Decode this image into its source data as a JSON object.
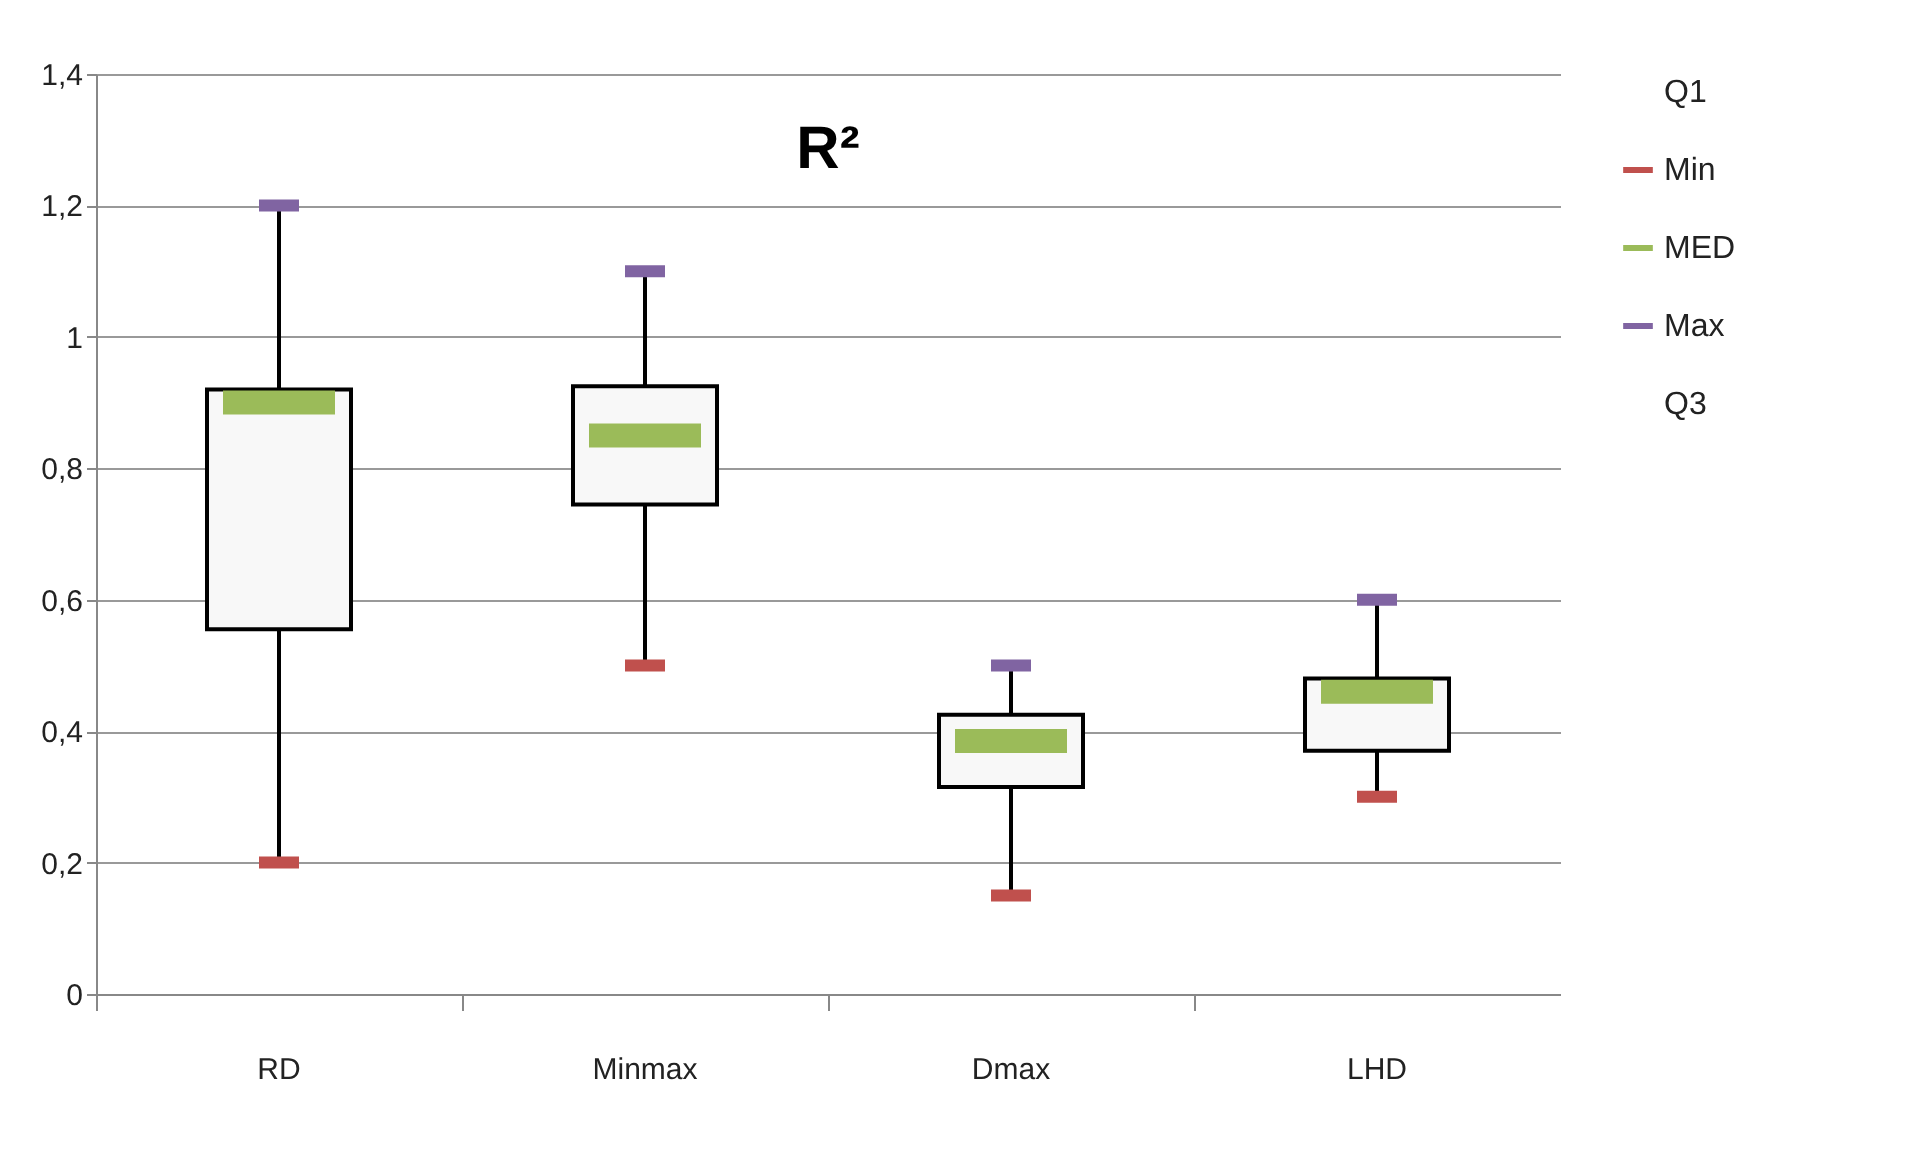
{
  "chart_data": {
    "type": "box",
    "title": "R²",
    "categories": [
      "RD",
      "Minmax",
      "Dmax",
      "LHD"
    ],
    "boxes": [
      {
        "low": 0.2,
        "q1": 0.555,
        "median": 0.9,
        "q3": 0.92,
        "high": 1.2
      },
      {
        "low": 0.5,
        "q1": 0.745,
        "median": 0.85,
        "q3": 0.925,
        "high": 1.1
      },
      {
        "low": 0.15,
        "q1": 0.315,
        "median": 0.385,
        "q3": 0.425,
        "high": 0.5
      },
      {
        "low": 0.3,
        "q1": 0.37,
        "median": 0.46,
        "q3": 0.48,
        "high": 0.6
      }
    ],
    "series": [
      {
        "name": "Q1",
        "type": "scatter",
        "values": [
          null,
          null,
          null,
          null
        ]
      },
      {
        "name": "Min",
        "type": "scatter",
        "color": "#c0504d",
        "values": [
          0.2,
          0.5,
          0.15,
          0.3
        ]
      },
      {
        "name": "MED",
        "type": "scatter",
        "color": "#9bbb59",
        "values": [
          null,
          null,
          null,
          null
        ]
      },
      {
        "name": "Max",
        "type": "scatter",
        "color": "#8064a2",
        "values": [
          1.2,
          1.1,
          0.5,
          0.6
        ]
      },
      {
        "name": "Q3",
        "type": "scatter",
        "values": [
          null,
          null,
          null,
          null
        ]
      }
    ],
    "ylim": [
      0,
      1.4
    ],
    "yticks": [
      {
        "value": 0,
        "label": "0"
      },
      {
        "value": 0.2,
        "label": "0,2"
      },
      {
        "value": 0.4,
        "label": "0,4"
      },
      {
        "value": 0.6,
        "label": "0,6"
      },
      {
        "value": 0.8,
        "label": "0,8"
      },
      {
        "value": 1,
        "label": "1"
      },
      {
        "value": 1.2,
        "label": "1,2"
      },
      {
        "value": 1.4,
        "label": "1,4"
      }
    ],
    "grid": "y",
    "legend": "right"
  }
}
